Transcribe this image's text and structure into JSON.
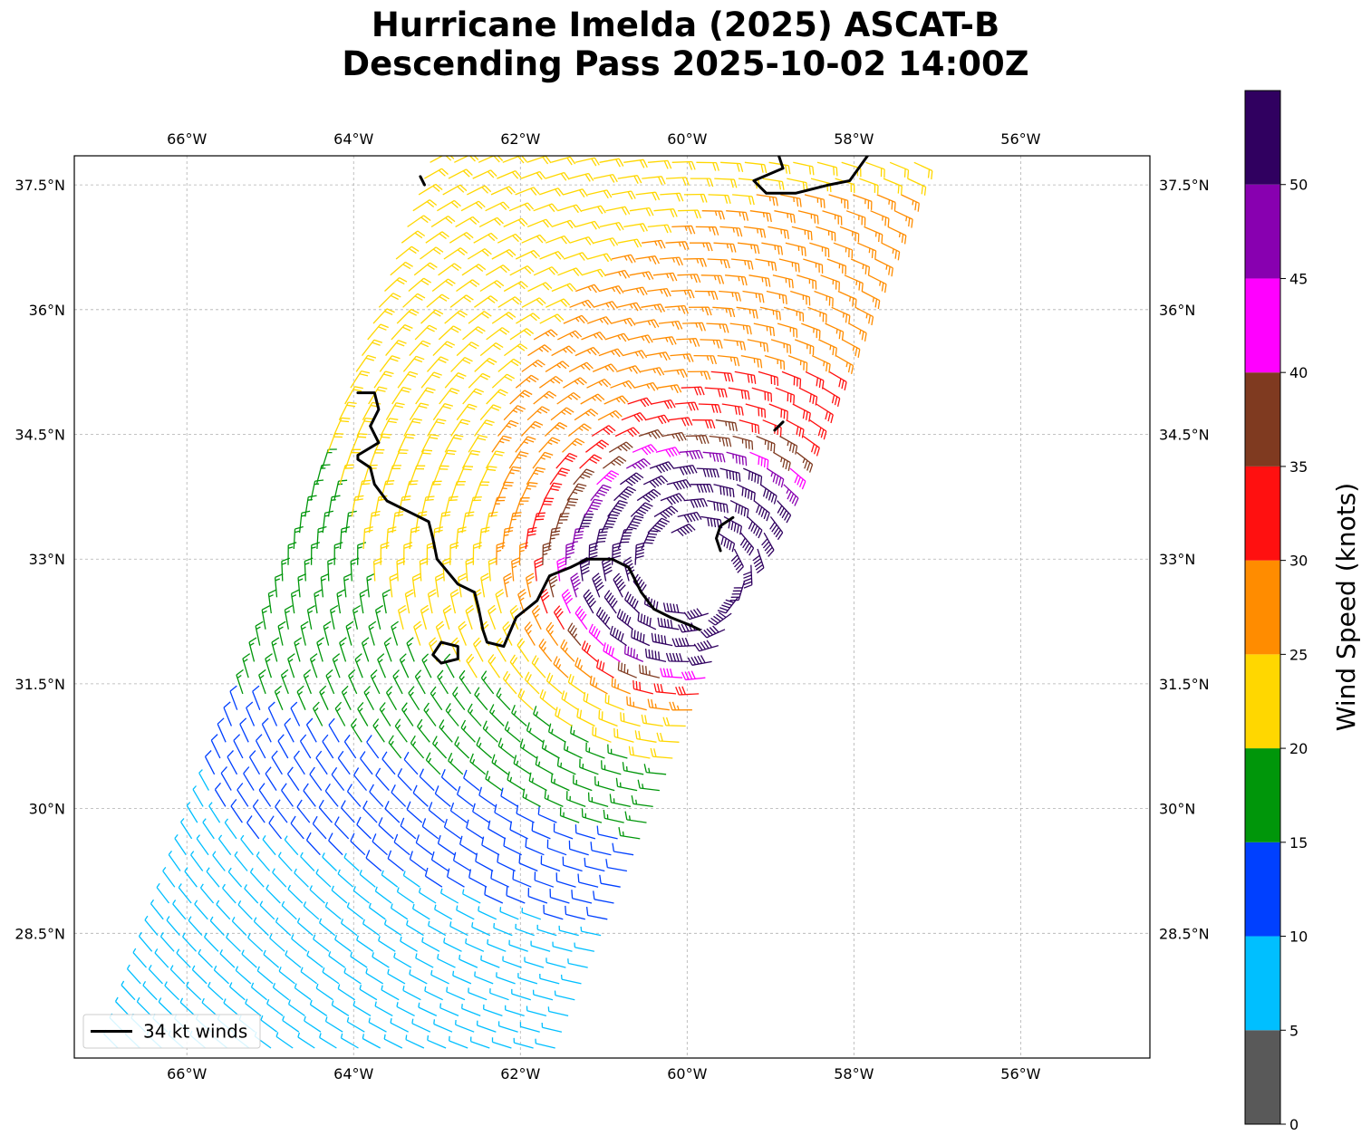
{
  "title": {
    "line1": "Hurricane Imelda (2025) ASCAT-B",
    "line2": "Descending Pass 2025-10-02 14:00Z"
  },
  "chart_data": {
    "type": "map",
    "projection": "plate-carree",
    "lon_range": [
      -67.35,
      -54.45
    ],
    "lat_range": [
      27.0,
      37.85
    ],
    "lon_ticks": [
      -66,
      -64,
      -62,
      -60,
      -58,
      -56
    ],
    "lon_tick_labels": [
      "66°W",
      "64°W",
      "62°W",
      "60°W",
      "58°W",
      "56°W"
    ],
    "lat_ticks": [
      28.5,
      30,
      31.5,
      33,
      34.5,
      36,
      37.5
    ],
    "lat_tick_labels": [
      "28.5°N",
      "30°N",
      "31.5°N",
      "33°N",
      "34.5°N",
      "36°N",
      "37.5°N"
    ],
    "grid": true,
    "colorbar": {
      "label": "Wind Speed (knots)",
      "bounds": [
        0,
        5,
        10,
        15,
        20,
        25,
        30,
        35,
        40,
        45,
        50,
        55
      ],
      "tick_labels": [
        "0",
        "5",
        "10",
        "15",
        "20",
        "25",
        "30",
        "35",
        "40",
        "45",
        "50"
      ],
      "colors": [
        "#595959",
        "#00bfff",
        "#0040ff",
        "#00960a",
        "#ffd700",
        "#ff8c00",
        "#ff1010",
        "#7f3a20",
        "#ff00ff",
        "#8800b0",
        "#300060"
      ]
    },
    "legend": {
      "position": "lower-left",
      "entries": [
        {
          "label": "34 kt winds",
          "color": "#000000"
        }
      ]
    },
    "swath": {
      "corners": [
        [
          -63.2,
          37.85
        ],
        [
          -57.1,
          37.85
        ],
        [
          -61.5,
          27.0
        ],
        [
          -67.0,
          27.0
        ]
      ],
      "center": [
        -59.95,
        32.9
      ],
      "calm_radius_deg": 0.45
    },
    "wind_34kt_contour": [
      [
        -63.95,
        35.0
      ],
      [
        -63.75,
        35.0
      ],
      [
        -63.7,
        34.8
      ],
      [
        -63.8,
        34.6
      ],
      [
        -63.7,
        34.4
      ],
      [
        -63.95,
        34.25
      ],
      [
        -63.95,
        34.2
      ],
      [
        -63.8,
        34.1
      ],
      [
        -63.75,
        33.9
      ],
      [
        -63.6,
        33.7
      ],
      [
        -63.3,
        33.55
      ],
      [
        -63.1,
        33.45
      ],
      [
        -63.05,
        33.25
      ],
      [
        -63.0,
        33.0
      ],
      [
        -62.75,
        32.7
      ],
      [
        -62.55,
        32.6
      ],
      [
        -62.5,
        32.4
      ],
      [
        -62.45,
        32.15
      ],
      [
        -62.4,
        32.0
      ],
      [
        -62.2,
        31.95
      ],
      [
        -62.05,
        32.3
      ],
      [
        -61.8,
        32.5
      ],
      [
        -61.65,
        32.8
      ],
      [
        -61.4,
        32.9
      ],
      [
        -61.2,
        33.0
      ],
      [
        -60.9,
        33.0
      ],
      [
        -60.7,
        32.9
      ],
      [
        -60.55,
        32.6
      ],
      [
        -60.4,
        32.4
      ],
      [
        -60.2,
        32.3
      ],
      [
        -59.95,
        32.2
      ],
      [
        -59.85,
        32.15
      ]
    ],
    "wind_34kt_small_contours": [
      [
        [
          -58.9,
          37.85
        ],
        [
          -58.85,
          37.7
        ],
        [
          -59.2,
          37.55
        ],
        [
          -59.05,
          37.4
        ],
        [
          -58.7,
          37.4
        ],
        [
          -58.3,
          37.5
        ],
        [
          -58.05,
          37.55
        ],
        [
          -57.8,
          37.9
        ]
      ],
      [
        [
          -62.95,
          31.75
        ],
        [
          -62.75,
          31.8
        ],
        [
          -62.75,
          31.95
        ],
        [
          -62.95,
          32.0
        ],
        [
          -63.05,
          31.85
        ],
        [
          -62.95,
          31.75
        ]
      ],
      [
        [
          -59.45,
          33.5
        ],
        [
          -59.6,
          33.4
        ],
        [
          -59.65,
          33.25
        ],
        [
          -59.6,
          33.1
        ]
      ],
      [
        [
          -63.15,
          37.5
        ],
        [
          -63.2,
          37.6
        ]
      ],
      [
        [
          -58.95,
          34.55
        ],
        [
          -58.85,
          34.65
        ]
      ]
    ]
  }
}
